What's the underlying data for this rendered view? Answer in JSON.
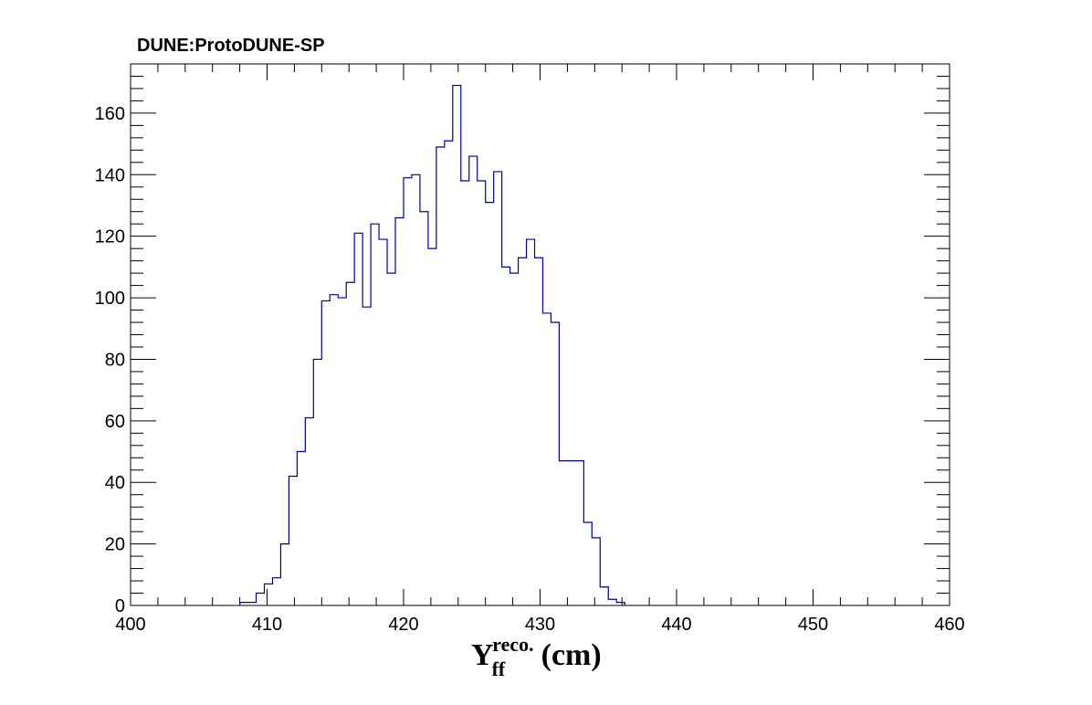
{
  "chart_data": {
    "type": "histogram",
    "title": "DUNE:ProtoDUNE-SP",
    "xlabel": {
      "base": "Y",
      "subscript": "ff",
      "superscript": "reco.",
      "unit": "(cm)"
    },
    "ylabel": "",
    "xlim": [
      400,
      460
    ],
    "ylim": [
      0,
      176
    ],
    "x_ticks": [
      400,
      410,
      420,
      430,
      440,
      450,
      460
    ],
    "y_ticks": [
      0,
      20,
      40,
      60,
      80,
      100,
      120,
      140,
      160
    ],
    "grid": false,
    "line_color": "#000099",
    "bin_width": 0.6,
    "bin_edges_start": 408.0,
    "values": [
      1,
      1,
      4,
      7,
      9,
      20,
      42,
      50,
      61,
      80,
      99,
      101,
      100,
      105,
      121,
      97,
      124,
      119,
      108,
      126,
      139,
      140,
      128,
      116,
      149,
      151,
      169,
      138,
      146,
      138,
      131,
      141,
      110,
      108,
      113,
      119,
      113,
      95,
      92,
      47,
      47,
      47,
      27,
      22,
      6,
      2,
      1
    ]
  }
}
